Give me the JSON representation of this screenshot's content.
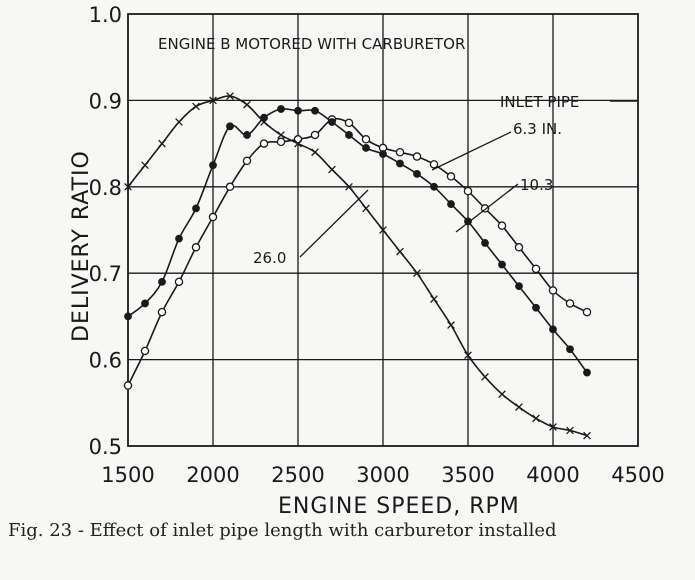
{
  "caption": "Fig. 23 - Effect of inlet pipe length with carburetor installed",
  "chart_data": {
    "type": "line",
    "title": "ENGINE B MOTORED WITH CARBURETOR",
    "xlabel": "ENGINE SPEED, RPM",
    "ylabel": "DELIVERY RATIO",
    "xlim": [
      1500,
      4500
    ],
    "ylim": [
      0.5,
      1.0
    ],
    "xticks": [
      "1500",
      "2000",
      "2500",
      "3000",
      "3500",
      "4000",
      "4500"
    ],
    "yticks": [
      "0.5",
      "0.6",
      "0.7",
      "0.8",
      "0.9",
      "1.0"
    ],
    "grid": true,
    "legend_title": "INLET PIPE",
    "series": [
      {
        "name": "6.3 IN.",
        "marker": "open-circle",
        "x": [
          1500,
          1600,
          1700,
          1800,
          1900,
          2000,
          2100,
          2200,
          2300,
          2400,
          2500,
          2600,
          2700,
          2800,
          2900,
          3000,
          3100,
          3200,
          3300,
          3400,
          3500,
          3600,
          3700,
          3800,
          3900,
          4000,
          4100,
          4200
        ],
        "y": [
          0.57,
          0.61,
          0.655,
          0.69,
          0.73,
          0.765,
          0.8,
          0.83,
          0.85,
          0.852,
          0.855,
          0.86,
          0.878,
          0.874,
          0.855,
          0.845,
          0.84,
          0.835,
          0.826,
          0.812,
          0.795,
          0.775,
          0.755,
          0.73,
          0.705,
          0.68,
          0.665,
          0.655
        ]
      },
      {
        "name": "10.3",
        "marker": "filled-circle",
        "x": [
          1500,
          1600,
          1700,
          1800,
          1900,
          2000,
          2100,
          2200,
          2300,
          2400,
          2500,
          2600,
          2700,
          2800,
          2900,
          3000,
          3100,
          3200,
          3300,
          3400,
          3500,
          3600,
          3700,
          3800,
          3900,
          4000,
          4100,
          4200
        ],
        "y": [
          0.65,
          0.665,
          0.69,
          0.74,
          0.775,
          0.825,
          0.87,
          0.86,
          0.88,
          0.89,
          0.888,
          0.888,
          0.875,
          0.86,
          0.845,
          0.838,
          0.827,
          0.815,
          0.8,
          0.78,
          0.76,
          0.735,
          0.71,
          0.685,
          0.66,
          0.635,
          0.612,
          0.585
        ]
      },
      {
        "name": "26.0",
        "marker": "x",
        "x": [
          1500,
          1600,
          1700,
          1800,
          1900,
          2000,
          2100,
          2200,
          2300,
          2400,
          2500,
          2600,
          2700,
          2800,
          2900,
          3000,
          3100,
          3200,
          3300,
          3400,
          3500,
          3600,
          3700,
          3800,
          3900,
          4000,
          4100,
          4200
        ],
        "y": [
          0.8,
          0.825,
          0.85,
          0.875,
          0.893,
          0.9,
          0.905,
          0.895,
          0.875,
          0.86,
          0.85,
          0.84,
          0.82,
          0.8,
          0.775,
          0.75,
          0.725,
          0.7,
          0.67,
          0.64,
          0.605,
          0.58,
          0.56,
          0.545,
          0.532,
          0.522,
          0.518,
          0.512
        ]
      }
    ]
  }
}
